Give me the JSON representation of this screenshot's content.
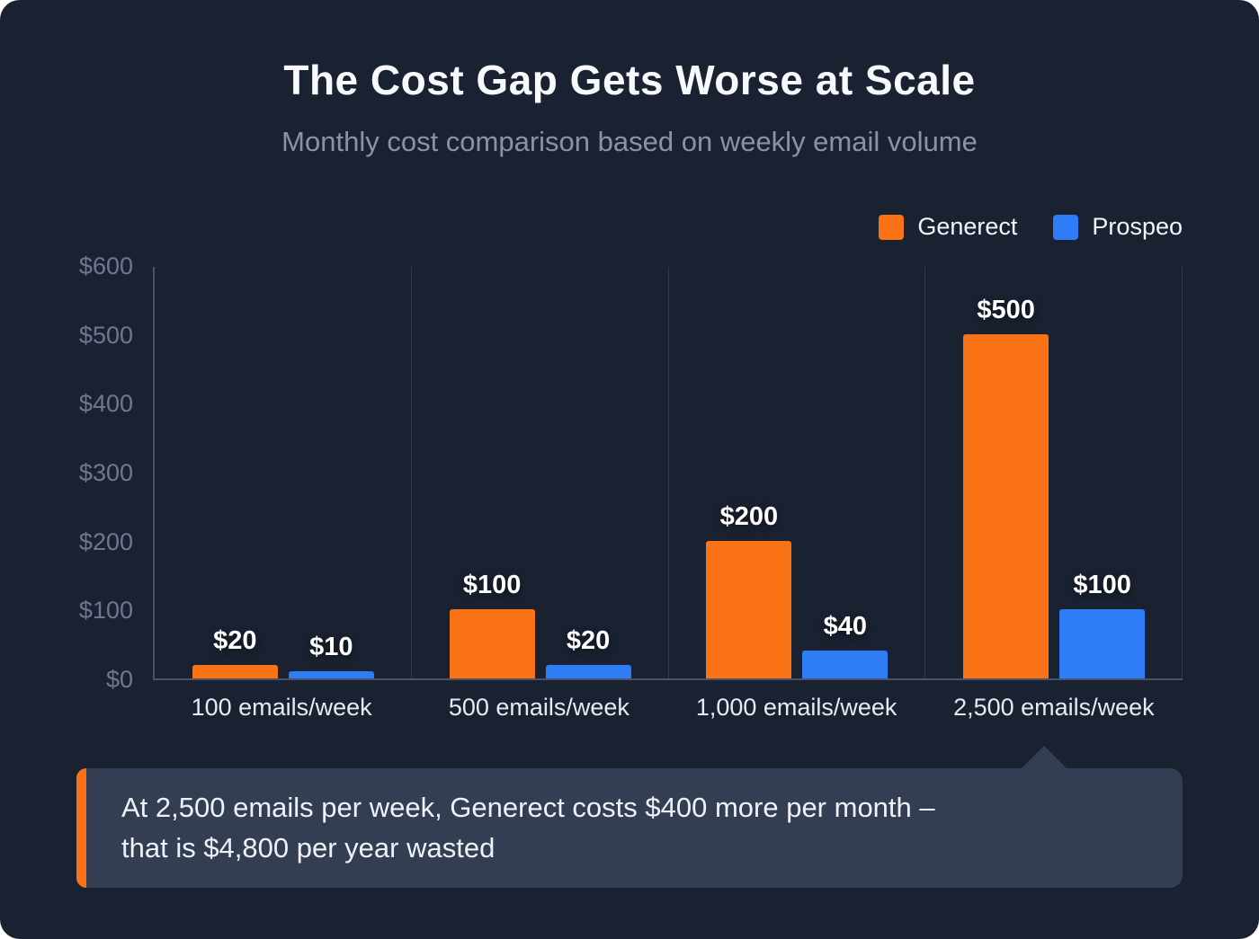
{
  "title": "The Cost Gap Gets Worse at Scale",
  "subtitle": "Monthly cost comparison based on weekly email volume",
  "legend": [
    {
      "label": "Generect",
      "color": "#f97316"
    },
    {
      "label": "Prospeo",
      "color": "#2e7df6"
    }
  ],
  "chart_data": {
    "type": "bar",
    "categories": [
      "100 emails/week",
      "500 emails/week",
      "1,000 emails/week",
      "2,500 emails/week"
    ],
    "series": [
      {
        "name": "Generect",
        "color": "#f97316",
        "values": [
          20,
          100,
          200,
          500
        ],
        "labels": [
          "$20",
          "$100",
          "$200",
          "$500"
        ]
      },
      {
        "name": "Prospeo",
        "color": "#2e7df6",
        "values": [
          10,
          20,
          40,
          100
        ],
        "labels": [
          "$10",
          "$20",
          "$40",
          "$100"
        ]
      }
    ],
    "title": "The Cost Gap Gets Worse at Scale",
    "subtitle": "Monthly cost comparison based on weekly email volume",
    "xlabel": "",
    "ylabel": "",
    "ylim": [
      0,
      600
    ],
    "yticks": [
      0,
      100,
      200,
      300,
      400,
      500,
      600
    ],
    "ytick_labels": [
      "$0",
      "$100",
      "$200",
      "$300",
      "$400",
      "$500",
      "$600"
    ],
    "grid": "vertical-separators",
    "legend_position": "top-right"
  },
  "callout": {
    "line1": "At 2,500 emails per week, Generect costs $400 more per month –",
    "line2": "that is $4,800 per year wasted",
    "accent_color": "#f97316"
  }
}
